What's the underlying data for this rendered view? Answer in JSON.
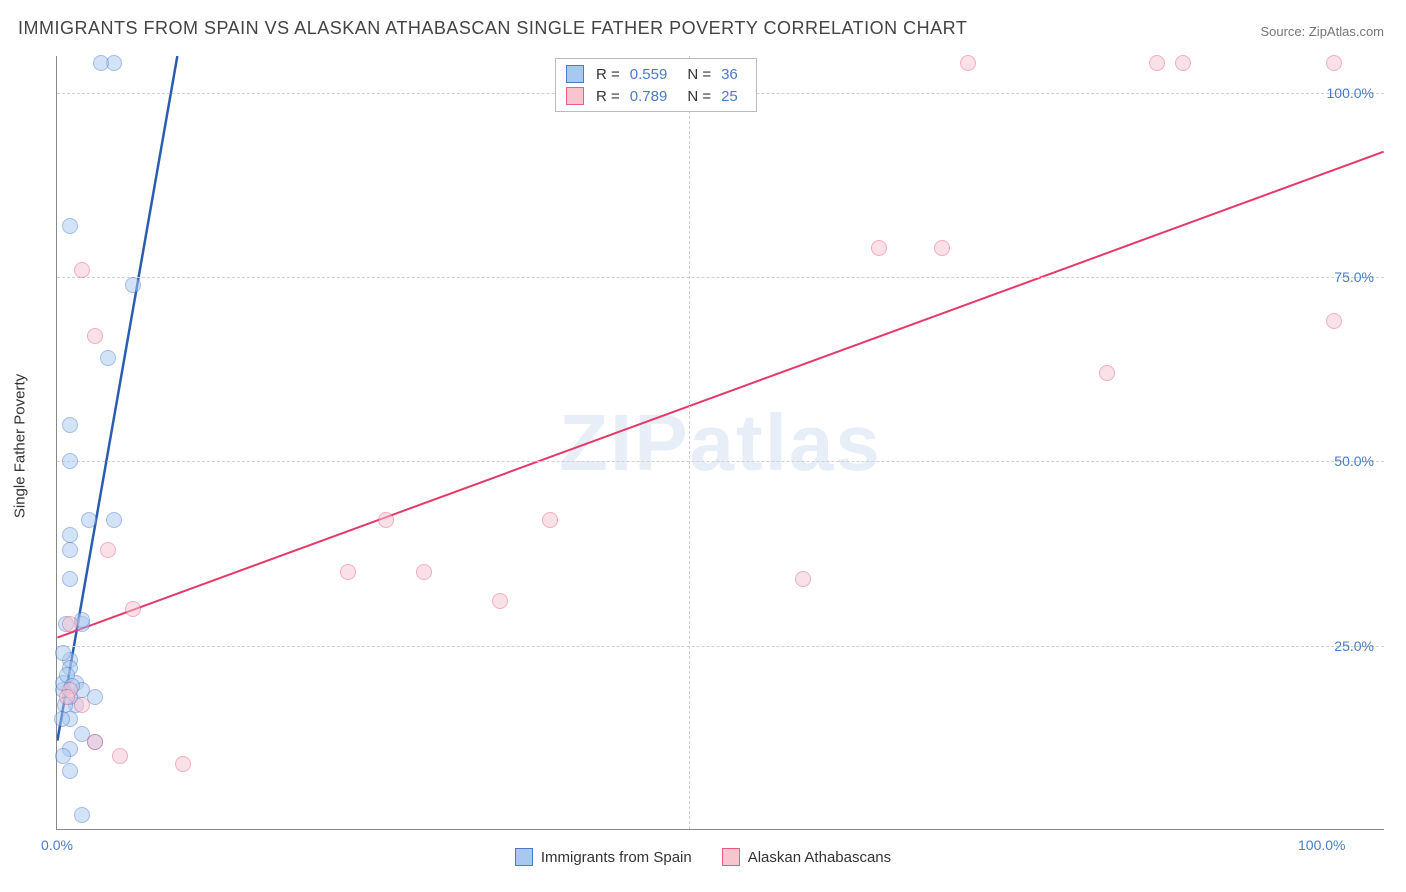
{
  "title": "IMMIGRANTS FROM SPAIN VS ALASKAN ATHABASCAN SINGLE FATHER POVERTY CORRELATION CHART",
  "source": "Source: ZipAtlas.com",
  "watermark": "ZIPatlas",
  "ylabel": "Single Father Poverty",
  "chart": {
    "type": "scatter",
    "xlim": [
      0,
      105
    ],
    "ylim": [
      0,
      105
    ],
    "xticks": [
      0,
      100
    ],
    "xtick_labels": [
      "0.0%",
      "100.0%"
    ],
    "yticks": [
      25,
      50,
      75,
      100
    ],
    "ytick_labels": [
      "25.0%",
      "50.0%",
      "75.0%",
      "100.0%"
    ],
    "minor_xticks": [
      50
    ],
    "background_color": "#ffffff",
    "grid_color": "#d0d0d0",
    "marker_radius": 8,
    "series": [
      {
        "name": "Immigrants from Spain",
        "fill_color": "#a8c8f0",
        "fill_opacity": 0.5,
        "stroke_color": "#4a7bc8",
        "line_color": "#2a5db0",
        "line_width": 2.5,
        "R": "0.559",
        "N": "36",
        "trend": {
          "x1": 0,
          "y1": 12,
          "x2": 9.5,
          "y2": 105
        },
        "points": [
          [
            4.5,
            104
          ],
          [
            3.5,
            104
          ],
          [
            1,
            82
          ],
          [
            6,
            74
          ],
          [
            4,
            64
          ],
          [
            1,
            55
          ],
          [
            1,
            50
          ],
          [
            4.5,
            42
          ],
          [
            2.5,
            42
          ],
          [
            1,
            40
          ],
          [
            1,
            34
          ],
          [
            1,
            38
          ],
          [
            2,
            28
          ],
          [
            2,
            28.5
          ],
          [
            1,
            23
          ],
          [
            1,
            22
          ],
          [
            1.5,
            20
          ],
          [
            2,
            19
          ],
          [
            3,
            18
          ],
          [
            1.5,
            17
          ],
          [
            1,
            18
          ],
          [
            0.5,
            19
          ],
          [
            0.5,
            20
          ],
          [
            1,
            15
          ],
          [
            2,
            13
          ],
          [
            3,
            12
          ],
          [
            1,
            11
          ],
          [
            0.5,
            10
          ],
          [
            1,
            8
          ],
          [
            2,
            2
          ],
          [
            0.7,
            28
          ],
          [
            0.5,
            24
          ],
          [
            0.8,
            21
          ],
          [
            1.2,
            19.5
          ],
          [
            0.6,
            17
          ],
          [
            0.4,
            15
          ]
        ]
      },
      {
        "name": "Alaskan Athabascans",
        "fill_color": "#f7c5d0",
        "fill_opacity": 0.5,
        "stroke_color": "#e85d85",
        "line_color": "#e63968",
        "line_width": 2,
        "R": "0.789",
        "N": "25",
        "trend": {
          "x1": 0,
          "y1": 26,
          "x2": 105,
          "y2": 92
        },
        "points": [
          [
            72,
            104
          ],
          [
            87,
            104
          ],
          [
            89,
            104
          ],
          [
            101,
            104
          ],
          [
            101,
            69
          ],
          [
            83,
            62
          ],
          [
            65,
            79
          ],
          [
            70,
            79
          ],
          [
            59,
            34
          ],
          [
            39,
            42
          ],
          [
            35,
            31
          ],
          [
            29,
            35
          ],
          [
            23,
            35
          ],
          [
            26,
            42
          ],
          [
            10,
            9
          ],
          [
            6,
            30
          ],
          [
            2,
            76
          ],
          [
            3,
            67
          ],
          [
            4,
            38
          ],
          [
            1,
            28
          ],
          [
            1,
            19
          ],
          [
            2,
            17
          ],
          [
            3,
            12
          ],
          [
            5,
            10
          ],
          [
            0.8,
            18
          ]
        ]
      }
    ]
  },
  "bottom_legend": [
    "Immigrants from Spain",
    "Alaskan Athabascans"
  ]
}
